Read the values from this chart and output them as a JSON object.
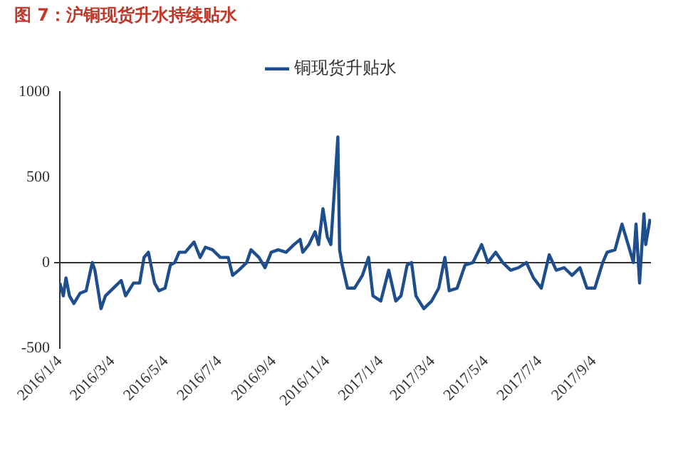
{
  "chart_data": {
    "type": "line",
    "title": "图 7：沪铜现货升水持续贴水",
    "x": [
      "2016-01-04",
      "2016-01-08",
      "2016-01-11",
      "2016-01-15",
      "2016-01-20",
      "2016-01-27",
      "2016-02-03",
      "2016-02-10",
      "2016-02-13",
      "2016-02-20",
      "2016-02-25",
      "2016-03-05",
      "2016-03-14",
      "2016-03-19",
      "2016-03-28",
      "2016-04-04",
      "2016-04-09",
      "2016-04-14",
      "2016-04-21",
      "2016-04-26",
      "2016-05-03",
      "2016-05-09",
      "2016-05-14",
      "2016-05-19",
      "2016-05-26",
      "2016-06-05",
      "2016-06-12",
      "2016-06-18",
      "2016-06-26",
      "2016-07-05",
      "2016-07-14",
      "2016-07-19",
      "2016-07-26",
      "2016-08-04",
      "2016-08-09",
      "2016-08-18",
      "2016-08-25",
      "2016-09-01",
      "2016-09-09",
      "2016-09-18",
      "2016-09-27",
      "2016-10-04",
      "2016-10-07",
      "2016-10-14",
      "2016-10-21",
      "2016-10-25",
      "2016-10-30",
      "2016-11-04",
      "2016-11-08",
      "2016-11-16",
      "2016-11-18",
      "2016-11-21",
      "2016-11-27",
      "2016-12-05",
      "2016-12-14",
      "2016-12-21",
      "2016-12-26",
      "2017-01-04",
      "2017-01-13",
      "2017-01-21",
      "2017-01-27",
      "2017-02-03",
      "2017-02-08",
      "2017-02-13",
      "2017-02-22",
      "2017-03-03",
      "2017-03-11",
      "2017-03-18",
      "2017-03-23",
      "2017-04-01",
      "2017-04-10",
      "2017-04-19",
      "2017-04-29",
      "2017-05-06",
      "2017-05-15",
      "2017-05-23",
      "2017-06-01",
      "2017-06-10",
      "2017-06-19",
      "2017-06-27",
      "2017-07-06",
      "2017-07-15",
      "2017-07-23",
      "2017-08-01",
      "2017-08-10",
      "2017-08-19",
      "2017-08-27",
      "2017-09-05",
      "2017-09-14",
      "2017-09-19",
      "2017-09-28",
      "2017-10-06",
      "2017-10-13",
      "2017-10-19",
      "2017-10-22",
      "2017-10-26",
      "2017-10-31",
      "2017-11-02",
      "2017-11-07"
    ],
    "series": [
      {
        "name": "铜现货升贴水",
        "color": "#1f4e8c",
        "values": [
          -120,
          -195,
          -90,
          -195,
          -240,
          -180,
          -165,
          0,
          -45,
          -270,
          -195,
          -150,
          -105,
          -195,
          -120,
          -120,
          30,
          60,
          -120,
          -165,
          -150,
          -15,
          0,
          60,
          60,
          120,
          30,
          90,
          75,
          30,
          30,
          -75,
          -45,
          0,
          75,
          30,
          -30,
          60,
          75,
          60,
          105,
          135,
          60,
          105,
          180,
          105,
          315,
          150,
          105,
          735,
          75,
          -15,
          -150,
          -150,
          -75,
          30,
          -195,
          -225,
          -45,
          -225,
          -195,
          -15,
          0,
          -195,
          -270,
          -225,
          -150,
          30,
          -165,
          -150,
          -15,
          0,
          105,
          0,
          60,
          0,
          -45,
          -30,
          0,
          -90,
          -150,
          45,
          -45,
          -30,
          -75,
          -30,
          -150,
          -150,
          0,
          60,
          75,
          225,
          105,
          0,
          225,
          -120,
          285,
          105,
          255
        ]
      }
    ],
    "xlim": [
      "2016-01-04",
      "2017-11-08"
    ],
    "xticks": [
      {
        "value": "2016-01-04",
        "label": "2016/1/4"
      },
      {
        "value": "2016-03-04",
        "label": "2016/3/4"
      },
      {
        "value": "2016-05-04",
        "label": "2016/5/4"
      },
      {
        "value": "2016-07-04",
        "label": "2016/7/4"
      },
      {
        "value": "2016-09-04",
        "label": "2016/9/4"
      },
      {
        "value": "2016-11-04",
        "label": "2016/11/4"
      },
      {
        "value": "2017-01-04",
        "label": "2017/1/4"
      },
      {
        "value": "2017-03-04",
        "label": "2017/3/4"
      },
      {
        "value": "2017-05-04",
        "label": "2017/5/4"
      },
      {
        "value": "2017-07-04",
        "label": "2017/7/4"
      },
      {
        "value": "2017-09-04",
        "label": "2017/9/4"
      }
    ],
    "ylim": [
      -500,
      1000
    ],
    "yticks": [
      -500,
      0,
      500,
      1000
    ],
    "legend": "top",
    "marker": "none",
    "line_style": "solid"
  }
}
